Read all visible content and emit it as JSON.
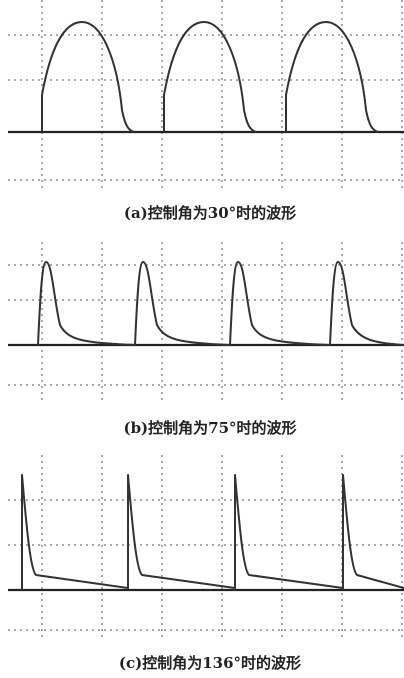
{
  "captions": [
    "(a)控制角为30°时的波形",
    "(b)控制角为75°时的波形",
    "(c)控制角为136°时的波形"
  ]
}
